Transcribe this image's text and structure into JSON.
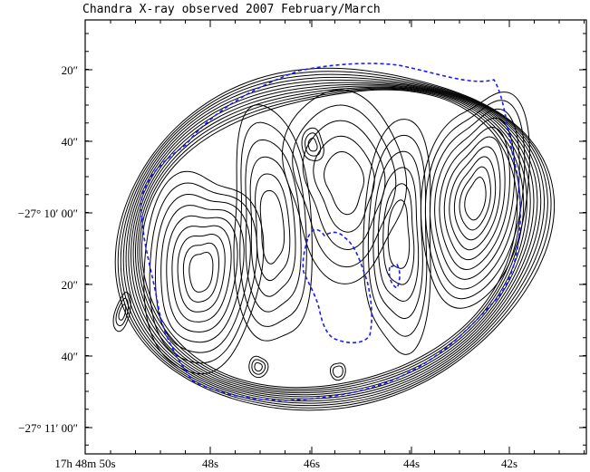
{
  "title": "Chandra X-ray observed 2007 February/March",
  "y_ticks": [
    {
      "label": "20″",
      "major": false
    },
    {
      "label": "40″",
      "major": false
    },
    {
      "label": "−27° 10′ 00″",
      "major": true
    },
    {
      "label": "20″",
      "major": false
    },
    {
      "label": "40″",
      "major": false
    },
    {
      "label": "−27° 11′ 00″",
      "major": true
    }
  ],
  "x_ticks": [
    {
      "label": "17h 48m 50s",
      "major": true
    },
    {
      "label": "48s",
      "major": false
    },
    {
      "label": "46s",
      "major": false
    },
    {
      "label": "44s",
      "major": false
    },
    {
      "label": "42s",
      "major": false
    }
  ],
  "colors": {
    "contour": "#000000",
    "radio_outline": "#1a1aff",
    "frame": "#000000"
  }
}
